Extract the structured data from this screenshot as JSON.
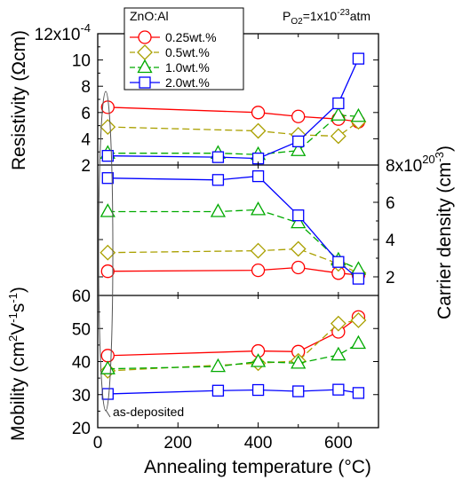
{
  "chart_data": {
    "type": "line",
    "x_values": [
      25,
      300,
      400,
      500,
      600,
      650
    ],
    "xlabel": "Annealing temperature (°C)",
    "xlim": [
      0,
      700
    ],
    "x_ticks": [
      "0",
      "200",
      "400",
      "600"
    ],
    "condition": {
      "base": "P",
      "sub": "O2",
      "text": "=1x10",
      "sup": "-23",
      "unit": "atm"
    },
    "annotation": "as-deposited",
    "legend": {
      "title": "ZnO:Al",
      "placement": "top-left",
      "entries": [
        "0.25wt.%",
        "0.5wt.%",
        "1.0wt.%",
        "2.0wt.%"
      ]
    },
    "series_styles": [
      {
        "name": "0.25wt.%",
        "color": "#ff0000",
        "marker": "circle",
        "dash": "solid"
      },
      {
        "name": "0.5wt.%",
        "color": "#aaa000",
        "marker": "diamond",
        "dash": "dashed"
      },
      {
        "name": "1.0wt.%",
        "color": "#00aa00",
        "marker": "triangle",
        "dash": "dashed"
      },
      {
        "name": "2.0wt.%",
        "color": "#0000ff",
        "marker": "square",
        "dash": "solid"
      }
    ],
    "panels": [
      {
        "id": "resistivity",
        "ylabel": {
          "text": "Resistivity (Ωcm)"
        },
        "y_axis_side": "left",
        "ylim": [
          2,
          12
        ],
        "y_ticks": [
          "2",
          "4",
          "6",
          "8",
          "10",
          "12x10"
        ],
        "y_tick_exponent": "-4",
        "series": [
          {
            "name": "0.25wt.%",
            "values": [
              6.4,
              null,
              6.0,
              5.7,
              5.5,
              5.3
            ]
          },
          {
            "name": "0.5wt.%",
            "values": [
              4.9,
              null,
              4.6,
              4.3,
              4.2,
              5.3
            ]
          },
          {
            "name": "1.0wt.%",
            "values": [
              2.9,
              2.9,
              2.8,
              3.1,
              5.8,
              5.7
            ]
          },
          {
            "name": "2.0wt.%",
            "values": [
              2.7,
              2.6,
              2.5,
              3.8,
              6.7,
              10.1
            ]
          }
        ]
      },
      {
        "id": "carrier_density",
        "ylabel": {
          "text": "Carrier density (cm",
          "sup": "-3",
          "close": ")"
        },
        "y_axis_side": "right",
        "ylim": [
          1,
          8
        ],
        "y_ticks": [
          "2",
          "4",
          "6",
          "8x10"
        ],
        "y_tick_exponent": "20",
        "series": [
          {
            "name": "0.25wt.%",
            "values": [
              2.3,
              null,
              2.35,
              2.5,
              2.2,
              2.1
            ]
          },
          {
            "name": "0.5wt.%",
            "values": [
              3.3,
              null,
              3.4,
              3.5,
              2.7,
              2.2
            ]
          },
          {
            "name": "1.0wt.%",
            "values": [
              5.5,
              5.5,
              5.6,
              4.9,
              2.9,
              2.4
            ]
          },
          {
            "name": "2.0wt.%",
            "values": [
              7.3,
              7.2,
              7.4,
              5.3,
              2.8,
              1.9
            ]
          }
        ]
      },
      {
        "id": "mobility",
        "ylabel": {
          "text": "Mobility (cm",
          "sup1": "2",
          "mid1": "V",
          "sup2": "-1",
          "mid2": "s",
          "sup3": "-1",
          "close": ")"
        },
        "y_axis_side": "left",
        "ylim": [
          20,
          60
        ],
        "y_ticks": [
          "20",
          "30",
          "40",
          "50",
          "60"
        ],
        "series": [
          {
            "name": "0.25wt.%",
            "values": [
              41.8,
              null,
              43.2,
              43.0,
              49.0,
              53.5
            ]
          },
          {
            "name": "0.5wt.%",
            "values": [
              37.2,
              null,
              39.5,
              40.2,
              51.5,
              52.5
            ]
          },
          {
            "name": "1.0wt.%",
            "values": [
              37.8,
              38.5,
              40.0,
              39.5,
              42.0,
              45.5
            ]
          },
          {
            "name": "2.0wt.%",
            "values": [
              30.2,
              31.2,
              31.4,
              31.0,
              31.5,
              30.5
            ]
          }
        ]
      }
    ]
  }
}
